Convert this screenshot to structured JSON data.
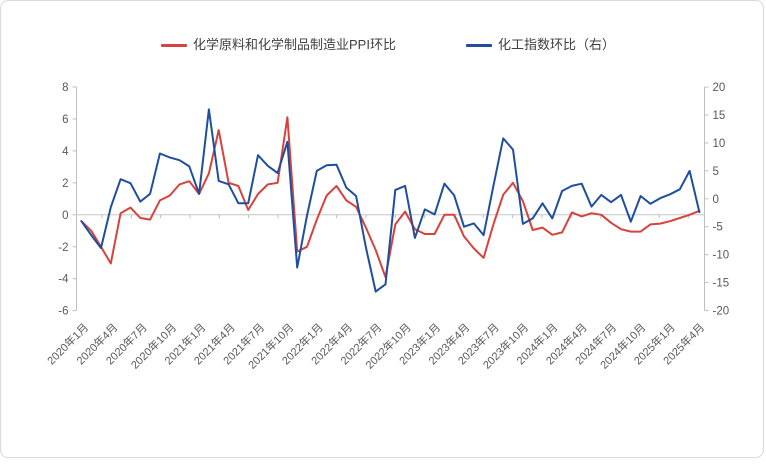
{
  "legend": {
    "series1_label": "化学原料和化学制品制造业PPI环比",
    "series2_label": "化工指数环比（右）"
  },
  "colors": {
    "series1": "#d8423c",
    "series2": "#1f4e9f",
    "zero_line": "#c6c6c6",
    "axis_line": "#bfbfbf",
    "tick_text": "#595959",
    "legend_text": "#3f3f3f",
    "card_border": "#d9d9d9"
  },
  "chart_data": {
    "type": "line",
    "title": "",
    "legend_position": "top",
    "grid": "zero-line-only",
    "x_tick_labels": [
      "2020年1月",
      "2020年4月",
      "2020年7月",
      "2020年10月",
      "2021年1月",
      "2021年4月",
      "2021年7月",
      "2021年10月",
      "2022年1月",
      "2022年4月",
      "2022年7月",
      "2022年10月",
      "2023年1月",
      "2023年4月",
      "2023年7月",
      "2023年10月",
      "2024年1月",
      "2024年4月",
      "2024年7月",
      "2024年10月",
      "2025年1月",
      "2025年4月"
    ],
    "x_months_per_tick": 3,
    "left_axis": {
      "ticks": [
        8,
        6,
        4,
        2,
        0,
        -2,
        -4,
        -6
      ],
      "min": -6,
      "max": 8
    },
    "right_axis": {
      "ticks": [
        20,
        15,
        10,
        5,
        0,
        -5,
        -10,
        -15,
        -20
      ],
      "min": -20,
      "max": 20
    },
    "series": [
      {
        "name": "化学原料和化学制品制造业PPI环比",
        "axis": "left",
        "color": "#d8423c",
        "values": [
          -0.4,
          -1.0,
          -2.0,
          -3.05,
          0.1,
          0.45,
          -0.2,
          -0.3,
          0.9,
          1.2,
          1.9,
          2.1,
          1.3,
          2.6,
          5.3,
          2.0,
          1.8,
          0.3,
          1.3,
          1.9,
          2.0,
          6.1,
          -2.3,
          -2.0,
          -0.3,
          1.2,
          1.8,
          0.9,
          0.5,
          -0.8,
          -2.2,
          -3.9,
          -0.6,
          0.2,
          -0.9,
          -1.2,
          -1.2,
          0.0,
          0.0,
          -1.35,
          -2.1,
          -2.7,
          -0.6,
          1.25,
          2.0,
          0.85,
          -0.95,
          -0.8,
          -1.25,
          -1.1,
          0.15,
          -0.1,
          0.1,
          0.0,
          -0.5,
          -0.9,
          -1.05,
          -1.05,
          -0.6,
          -0.55,
          -0.4,
          -0.2,
          0.0,
          0.25
        ]
      },
      {
        "name": "化工指数环比（右）",
        "axis": "right",
        "color": "#1f4e9f",
        "values": [
          -4.0,
          -6.5,
          -8.8,
          -1.5,
          3.5,
          2.8,
          -0.5,
          0.9,
          8.1,
          7.4,
          6.9,
          5.8,
          0.9,
          16.0,
          3.2,
          2.6,
          -0.8,
          -0.8,
          7.8,
          5.9,
          4.6,
          10.2,
          -12.3,
          -3.0,
          5.0,
          6.0,
          6.1,
          2.0,
          0.5,
          -8.7,
          -16.6,
          -15.3,
          1.6,
          2.3,
          -7.0,
          -1.9,
          -2.8,
          2.7,
          0.6,
          -5.0,
          -4.4,
          -6.5,
          2.3,
          10.8,
          8.8,
          -4.5,
          -3.5,
          -0.8,
          -3.5,
          1.4,
          2.3,
          2.7,
          -1.4,
          0.7,
          -0.6,
          0.7,
          -4.1,
          0.5,
          -0.9,
          0.1,
          0.8,
          1.7,
          5.0,
          -2.4
        ]
      }
    ]
  }
}
